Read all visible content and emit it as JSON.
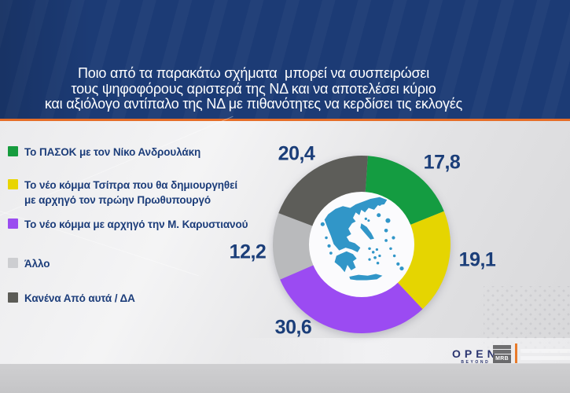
{
  "title": {
    "lines": [
      "Ποιο από τα παρακάτω σχήματα  μπορεί να συσπειρώσει",
      "τους ψηφοφόρους αριστερά της ΝΔ και να αποτελέσει κύριο",
      "και αξιόλογο αντίπαλο της ΝΔ με πιθανότητες να κερδίσει τις εκλογές"
    ]
  },
  "legend": {
    "items": [
      {
        "label": "Το ΠΑΣΟΚ με τον Νίκο Ανδρουλάκη",
        "color": "#169C3E"
      },
      {
        "label": "Το νέο κόμμα Τσίπρα που θα δημιουργηθεί\nμε αρχηγό τον πρώην Πρωθυπουργό",
        "color": "#E8D500"
      },
      {
        "label": "Το νέο κόμμα με αρχηγό την Μ. Καρυστιανού",
        "color": "#9A4CF0"
      },
      {
        "label": "Άλλο",
        "color": "#CDCED1"
      },
      {
        "label": "Κανένα Από αυτά / ΔΑ",
        "color": "#5C5C57"
      }
    ]
  },
  "chart_data": {
    "type": "pie",
    "subtype": "donut",
    "title": "Ποιο από τα παρακάτω σχήματα μπορεί να συσπειρώσει τους ψηφοφόρους αριστερά της ΝΔ και να αποτελέσει κύριο και αξιόλογο αντίπαλο της ΝΔ με πιθανότητες να κερδίσει τις εκλογές",
    "categories": [
      "Το ΠΑΣΟΚ με τον Νίκο Ανδρουλάκη",
      "Το νέο κόμμα Τσίπρα που θα δημιουργηθεί με αρχηγό τον πρώην Πρωθυπουργό",
      "Το νέο κόμμα με αρχηγό την Μ. Καρυστιανού",
      "Άλλο",
      "Κανένα Από αυτά / ΔΑ"
    ],
    "values": [
      17.8,
      19.1,
      30.6,
      12.2,
      20.4
    ],
    "segments": [
      {
        "name": "pasok-androulakis",
        "value": 17.8,
        "display": "17,8",
        "color": "#149C41"
      },
      {
        "name": "tsipras-new-party",
        "value": 19.1,
        "display": "19,1",
        "color": "#E5D501"
      },
      {
        "name": "karystianou-new-party",
        "value": 30.6,
        "display": "30,6",
        "color": "#9B4BF2"
      },
      {
        "name": "other",
        "value": 12.2,
        "display": "12,2",
        "color": "#B9BABC"
      },
      {
        "name": "none-of-these-dk",
        "value": 20.4,
        "display": "20,4",
        "color": "#5D5D59"
      }
    ],
    "start_angle_deg": 4,
    "direction": "clockwise",
    "legend_position": "left",
    "center_image": "map-of-greece",
    "grid": false
  },
  "footer": {
    "open": "OPEN",
    "open_sub": "BEYOND",
    "mrb": "MRB"
  },
  "colors": {
    "banner_blue": "#1C3B75",
    "accent_orange": "#E66E28",
    "text_navy": "#1B3E79",
    "map_blue": "#3196C8"
  }
}
